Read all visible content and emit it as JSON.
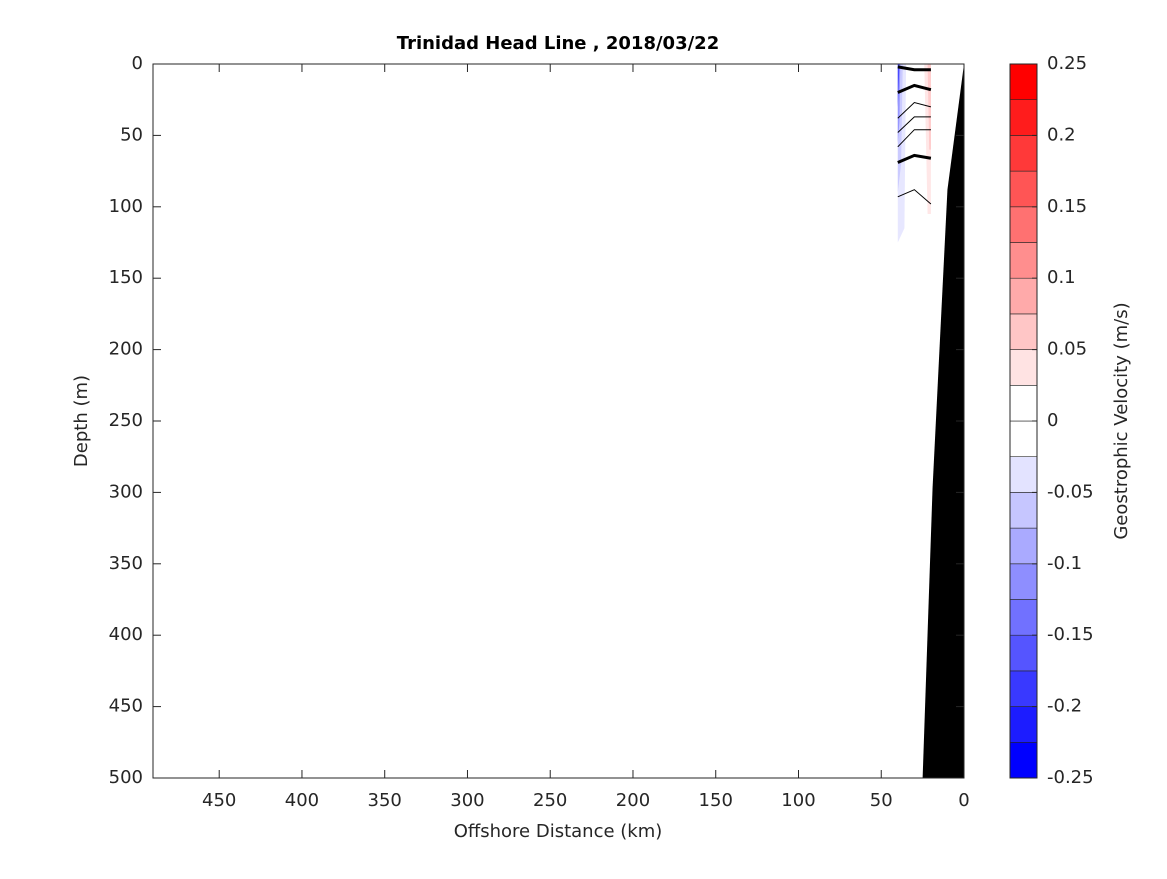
{
  "chart_data": {
    "type": "contour",
    "title": "Trinidad Head Line , 2018/03/22",
    "x_label": "Offshore Distance (km)",
    "y_label": "Depth (m)",
    "xlim": [
      490,
      0
    ],
    "xticks": [
      450,
      400,
      350,
      300,
      250,
      200,
      150,
      100,
      50,
      0
    ],
    "ylim": [
      0,
      500
    ],
    "yticks": [
      0,
      50,
      100,
      150,
      200,
      250,
      300,
      350,
      400,
      450,
      500
    ],
    "bathymetry": {
      "color": "#000000",
      "x": [
        0,
        10,
        19,
        25
      ],
      "depth": [
        0,
        88,
        297,
        500
      ]
    },
    "filled_regions": [
      {
        "level": -0.03,
        "x": [
          40,
          35,
          36,
          40
        ],
        "depth": [
          0,
          0,
          115,
          125
        ]
      },
      {
        "level": -0.06,
        "x": [
          40,
          37,
          38,
          40
        ],
        "depth": [
          0,
          0,
          70,
          90
        ]
      },
      {
        "level": -0.11,
        "x": [
          40,
          38.5,
          39,
          40
        ],
        "depth": [
          0,
          0,
          40,
          55
        ]
      },
      {
        "level": -0.18,
        "x": [
          40,
          39,
          40
        ],
        "depth": [
          0,
          0,
          30
        ]
      },
      {
        "level": 0.03,
        "x": [
          24,
          20,
          20,
          22
        ],
        "depth": [
          0,
          0,
          105,
          105
        ]
      },
      {
        "level": 0.06,
        "x": [
          22,
          20,
          20,
          21
        ],
        "depth": [
          0,
          0,
          60,
          60
        ]
      }
    ],
    "contours": [
      {
        "width": 3,
        "x": [
          40,
          30,
          20
        ],
        "depth": [
          2,
          4,
          4
        ]
      },
      {
        "width": 3,
        "x": [
          40,
          30,
          20
        ],
        "depth": [
          20,
          15,
          18
        ]
      },
      {
        "width": 1,
        "x": [
          40,
          30,
          20
        ],
        "depth": [
          38,
          27,
          30
        ]
      },
      {
        "width": 1,
        "x": [
          40,
          30,
          20
        ],
        "depth": [
          48,
          37,
          37
        ]
      },
      {
        "width": 1,
        "x": [
          40,
          30,
          20
        ],
        "depth": [
          58,
          46,
          46
        ]
      },
      {
        "width": 3,
        "x": [
          40,
          30,
          20
        ],
        "depth": [
          69,
          64,
          66
        ]
      },
      {
        "width": 1,
        "x": [
          40,
          30,
          20
        ],
        "depth": [
          93,
          88,
          98
        ]
      }
    ],
    "colorbar": {
      "label": "Geostrophic Velocity (m/s)",
      "levels": [
        -0.25,
        -0.225,
        -0.2,
        -0.175,
        -0.15,
        -0.125,
        -0.1,
        -0.075,
        -0.05,
        -0.025,
        0,
        0.025,
        0.05,
        0.075,
        0.1,
        0.125,
        0.15,
        0.175,
        0.2,
        0.225,
        0.25
      ],
      "colors": [
        "#0000ff",
        "#1c1cff",
        "#3939ff",
        "#5555ff",
        "#7171ff",
        "#8e8eff",
        "#aaaaff",
        "#c6c6ff",
        "#e3e3ff",
        "#ffffff",
        "#ffffff",
        "#ffe3e3",
        "#ffc6c6",
        "#ffaaaa",
        "#ff8e8e",
        "#ff7171",
        "#ff5555",
        "#ff3939",
        "#ff1c1c",
        "#ff0000"
      ],
      "ticks": [
        -0.25,
        -0.2,
        -0.15,
        -0.1,
        -0.05,
        0,
        0.05,
        0.1,
        0.15,
        0.2,
        0.25
      ]
    }
  }
}
